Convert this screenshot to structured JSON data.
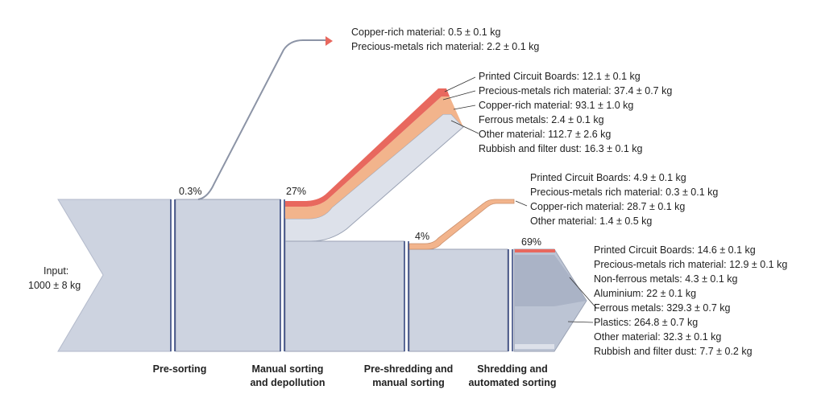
{
  "input": {
    "label": "Input:",
    "value": "1000 ± 8 kg"
  },
  "stages": [
    {
      "id": "pre-sorting",
      "lines": [
        "Pre-sorting"
      ]
    },
    {
      "id": "manual-sorting",
      "lines": [
        "Manual sorting",
        "and depollution"
      ]
    },
    {
      "id": "pre-shredding",
      "lines": [
        "Pre-shredding and",
        "manual sorting"
      ]
    },
    {
      "id": "shredding",
      "lines": [
        "Shredding and",
        "automated sorting"
      ]
    }
  ],
  "percentages": {
    "pre_sorting": "0.3%",
    "manual_sorting": "27%",
    "pre_shredding": "4%",
    "shredding": "69%"
  },
  "outputs": {
    "pre_sorting": [
      "Copper-rich material: 0.5 ± 0.1 kg",
      "Precious-metals rich material: 2.2 ± 0.1 kg"
    ],
    "manual_sorting": [
      "Printed Circuit Boards: 12.1 ± 0.1 kg",
      "Precious-metals rich material: 37.4 ± 0.7 kg",
      "Copper-rich material: 93.1 ± 1.0 kg",
      "Ferrous metals: 2.4 ± 0.1 kg",
      "Other material: 112.7 ± 2.6 kg",
      "Rubbish and filter dust: 16.3 ± 0.1 kg"
    ],
    "pre_shredding": [
      "Printed Circuit Boards: 4.9 ± 0.1 kg",
      "Precious-metals rich material: 0.3 ± 0.1 kg",
      "Copper-rich material: 28.7 ± 0.1 kg",
      "Other material: 1.4 ± 0.5 kg"
    ],
    "shredding": [
      "Printed Circuit Boards: 14.6 ± 0.1 kg",
      "Precious-metals rich material: 12.9 ± 0.1 kg",
      "Non-ferrous metals: 4.3 ± 0.1 kg",
      "Aluminium: 22 ± 0.1 kg",
      "Ferrous metals: 329.3 ± 0.7 kg",
      "Plastics: 264.8 ± 0.7 kg",
      "Other material: 32.3 ± 0.1 kg",
      "Rubbish and filter dust: 7.7 ± 0.2 kg"
    ]
  },
  "colors": {
    "flow": "#cdd3e0",
    "flow_stroke": "#9aa2b4",
    "divider": "#2c3e78",
    "red": "#e8685e",
    "orange": "#f2b48c",
    "silver": "#dde1ea",
    "gray_dark": "#aab3c6",
    "gray_mid": "#bcc4d4"
  }
}
